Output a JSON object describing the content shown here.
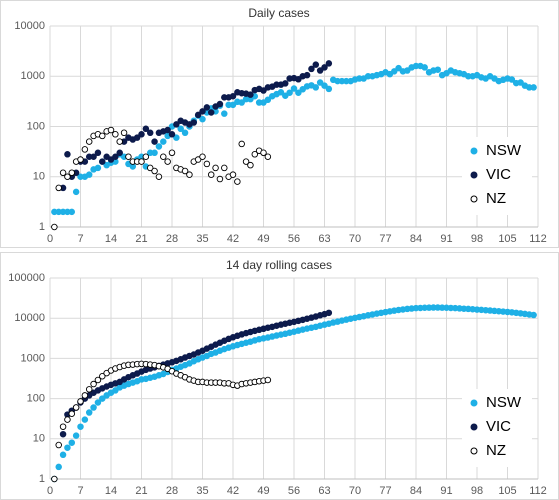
{
  "chart_data": [
    {
      "type": "scatter",
      "title": "Daily cases",
      "xlim": [
        0,
        112
      ],
      "ylim": [
        1,
        10000
      ],
      "log_y": true,
      "grid": true,
      "legend": "lower right",
      "xticks": [
        0,
        7,
        14,
        21,
        28,
        35,
        42,
        49,
        56,
        63,
        70,
        77,
        84,
        91,
        98,
        105,
        112
      ],
      "yticks": [
        1,
        10,
        100,
        1000,
        10000
      ],
      "series": [
        {
          "name": "NSW",
          "color": "#1fb0e6",
          "marker_fill": "#1fb0e6",
          "x": [
            1,
            2,
            3,
            4,
            5,
            6,
            7,
            8,
            9,
            10,
            11,
            12,
            13,
            14,
            15,
            16,
            17,
            18,
            19,
            20,
            21,
            22,
            23,
            24,
            25,
            26,
            27,
            28,
            29,
            30,
            31,
            32,
            33,
            34,
            35,
            36,
            37,
            38,
            39,
            40,
            41,
            42,
            43,
            44,
            45,
            46,
            47,
            48,
            49,
            50,
            51,
            52,
            53,
            54,
            55,
            56,
            57,
            58,
            59,
            60,
            61,
            62,
            63,
            64,
            65,
            66,
            67,
            68,
            69,
            70,
            71,
            72,
            73,
            74,
            75,
            76,
            77,
            78,
            79,
            80,
            81,
            82,
            83,
            84,
            85,
            86,
            87,
            88,
            89,
            90,
            91,
            92,
            93,
            94,
            95,
            96,
            97,
            98,
            99,
            100,
            101,
            102,
            103,
            104,
            105,
            106,
            107,
            108,
            109,
            110,
            111
          ],
          "values": [
            2,
            2,
            2,
            2,
            2,
            5,
            10,
            10,
            11,
            14,
            15,
            20,
            17,
            19,
            20,
            28,
            25,
            18,
            16,
            22,
            25,
            16,
            30,
            30,
            40,
            50,
            65,
            100,
            60,
            90,
            75,
            100,
            130,
            165,
            140,
            190,
            230,
            200,
            260,
            180,
            270,
            270,
            310,
            300,
            350,
            350,
            400,
            300,
            300,
            340,
            400,
            440,
            480,
            410,
            470,
            570,
            470,
            550,
            630,
            660,
            600,
            750,
            650,
            560,
            850,
            800,
            800,
            800,
            800,
            860,
            900,
            900,
            1000,
            1000,
            1050,
            1100,
            1200,
            1100,
            1250,
            1450,
            1250,
            1300,
            1500,
            1600,
            1600,
            1500,
            1200,
            1300,
            1350,
            1050,
            1150,
            1300,
            1200,
            1150,
            1100,
            1000,
            1000,
            1050,
            950,
            900,
            1000,
            900,
            800,
            850,
            900,
            860,
            730,
            750,
            650,
            600,
            600
          ]
        },
        {
          "name": "VIC",
          "color": "#0d1b4c",
          "marker_fill": "#0d1b4c",
          "x": [
            3,
            4,
            5,
            6,
            7,
            8,
            9,
            10,
            11,
            12,
            13,
            14,
            15,
            16,
            17,
            18,
            19,
            20,
            21,
            22,
            23,
            24,
            25,
            26,
            27,
            28,
            29,
            30,
            31,
            32,
            33,
            34,
            35,
            36,
            37,
            38,
            39,
            40,
            41,
            42,
            43,
            44,
            45,
            46,
            47,
            48,
            49,
            50,
            51,
            52,
            53,
            54,
            55,
            56,
            57,
            58,
            59,
            60,
            61,
            62,
            63,
            64
          ],
          "values": [
            6,
            28,
            10,
            12,
            20,
            20,
            25,
            25,
            30,
            20,
            25,
            22,
            25,
            30,
            50,
            60,
            55,
            60,
            70,
            90,
            75,
            50,
            75,
            80,
            85,
            70,
            110,
            130,
            120,
            110,
            120,
            170,
            200,
            240,
            190,
            250,
            280,
            380,
            380,
            400,
            480,
            460,
            450,
            430,
            530,
            560,
            520,
            600,
            620,
            680,
            680,
            720,
            900,
            920,
            870,
            1000,
            1050,
            1400,
            1700,
            1300,
            1500,
            1800
          ]
        },
        {
          "name": "NZ",
          "color": "#000000",
          "marker_fill": "#ffffff",
          "x": [
            1,
            2,
            3,
            4,
            5,
            6,
            7,
            8,
            9,
            10,
            11,
            12,
            13,
            14,
            15,
            16,
            17,
            18,
            19,
            20,
            21,
            22,
            23,
            24,
            25,
            26,
            27,
            28,
            29,
            30,
            31,
            32,
            33,
            34,
            35,
            36,
            37,
            38,
            39,
            40,
            41,
            42,
            43,
            44,
            45,
            46,
            47,
            48,
            49,
            50
          ],
          "values": [
            1,
            6,
            12,
            10,
            12,
            20,
            22,
            35,
            50,
            65,
            70,
            65,
            80,
            85,
            70,
            50,
            75,
            25,
            20,
            20,
            20,
            25,
            15,
            13,
            10,
            25,
            20,
            30,
            15,
            14,
            13,
            11,
            20,
            22,
            25,
            18,
            11,
            15,
            9,
            15,
            10,
            11,
            8,
            45,
            20,
            17,
            28,
            33,
            30,
            25
          ]
        }
      ]
    },
    {
      "type": "scatter",
      "title": "14 day rolling cases",
      "xlim": [
        0,
        112
      ],
      "ylim": [
        1,
        100000
      ],
      "log_y": true,
      "grid": true,
      "legend": "lower right",
      "xticks": [
        0,
        7,
        14,
        21,
        28,
        35,
        42,
        49,
        56,
        63,
        70,
        77,
        84,
        91,
        98,
        105,
        112
      ],
      "yticks": [
        1,
        10,
        100,
        1000,
        10000,
        100000
      ],
      "series": [
        {
          "name": "NSW",
          "color": "#1fb0e6",
          "marker_fill": "#1fb0e6",
          "x": [
            1,
            2,
            3,
            4,
            5,
            6,
            7,
            8,
            9,
            10,
            11,
            12,
            13,
            14,
            15,
            16,
            17,
            18,
            19,
            20,
            21,
            22,
            23,
            24,
            25,
            26,
            27,
            28,
            29,
            30,
            31,
            32,
            33,
            34,
            35,
            36,
            37,
            38,
            39,
            40,
            41,
            42,
            43,
            44,
            45,
            46,
            47,
            48,
            49,
            50,
            51,
            52,
            53,
            54,
            55,
            56,
            57,
            58,
            59,
            60,
            61,
            62,
            63,
            64,
            65,
            66,
            67,
            68,
            69,
            70,
            71,
            72,
            73,
            74,
            75,
            76,
            77,
            78,
            79,
            80,
            81,
            82,
            83,
            84,
            85,
            86,
            87,
            88,
            89,
            90,
            91,
            92,
            93,
            94,
            95,
            96,
            97,
            98,
            99,
            100,
            101,
            102,
            103,
            104,
            105,
            106,
            107,
            108,
            109,
            110,
            111
          ],
          "values": [
            1,
            2,
            4,
            6,
            8,
            12,
            20,
            30,
            45,
            60,
            80,
            100,
            120,
            140,
            160,
            190,
            210,
            230,
            250,
            270,
            300,
            310,
            330,
            350,
            380,
            410,
            460,
            520,
            560,
            620,
            680,
            750,
            850,
            950,
            1050,
            1150,
            1300,
            1400,
            1550,
            1700,
            1850,
            2000,
            2150,
            2300,
            2450,
            2600,
            2800,
            3000,
            3150,
            3300,
            3500,
            3700,
            3900,
            4100,
            4350,
            4600,
            4900,
            5200,
            5500,
            5800,
            6100,
            6500,
            6900,
            7300,
            7800,
            8200,
            8700,
            9200,
            9700,
            10200,
            10700,
            11200,
            11800,
            12400,
            13000,
            13600,
            14200,
            14800,
            15400,
            16000,
            16500,
            17000,
            17400,
            17800,
            18000,
            18200,
            18300,
            18400,
            18400,
            18300,
            18200,
            18000,
            17800,
            17500,
            17200,
            17000,
            16700,
            16400,
            16100,
            15800,
            15500,
            15200,
            14900,
            14600,
            14300,
            14000,
            13600,
            13200,
            12800,
            12400,
            12000
          ]
        },
        {
          "name": "VIC",
          "color": "#0d1b4c",
          "marker_fill": "#0d1b4c",
          "x": [
            3,
            4,
            5,
            6,
            7,
            8,
            9,
            10,
            11,
            12,
            13,
            14,
            15,
            16,
            17,
            18,
            19,
            20,
            21,
            22,
            23,
            24,
            25,
            26,
            27,
            28,
            29,
            30,
            31,
            32,
            33,
            34,
            35,
            36,
            37,
            38,
            39,
            40,
            41,
            42,
            43,
            44,
            45,
            46,
            47,
            48,
            49,
            50,
            51,
            52,
            53,
            54,
            55,
            56,
            57,
            58,
            59,
            60,
            61,
            62,
            63,
            64
          ],
          "values": [
            13,
            40,
            50,
            60,
            80,
            100,
            120,
            140,
            160,
            180,
            200,
            220,
            240,
            260,
            300,
            340,
            380,
            420,
            470,
            520,
            560,
            600,
            650,
            700,
            750,
            800,
            870,
            950,
            1050,
            1150,
            1250,
            1400,
            1550,
            1750,
            1950,
            2200,
            2450,
            2750,
            3050,
            3350,
            3650,
            3950,
            4250,
            4550,
            4850,
            5150,
            5450,
            5800,
            6100,
            6500,
            6900,
            7300,
            7700,
            8100,
            8600,
            9100,
            9700,
            10300,
            11000,
            11800,
            12600,
            13600
          ]
        },
        {
          "name": "NZ",
          "color": "#000000",
          "marker_fill": "#ffffff",
          "x": [
            1,
            2,
            3,
            4,
            5,
            6,
            7,
            8,
            9,
            10,
            11,
            12,
            13,
            14,
            15,
            16,
            17,
            18,
            19,
            20,
            21,
            22,
            23,
            24,
            25,
            26,
            27,
            28,
            29,
            30,
            31,
            32,
            33,
            34,
            35,
            36,
            37,
            38,
            39,
            40,
            41,
            42,
            43,
            44,
            45,
            46,
            47,
            48,
            49,
            50
          ],
          "values": [
            1,
            7,
            20,
            30,
            42,
            60,
            85,
            120,
            170,
            230,
            290,
            360,
            430,
            500,
            560,
            610,
            660,
            690,
            700,
            720,
            730,
            720,
            700,
            680,
            640,
            600,
            550,
            480,
            420,
            380,
            340,
            300,
            280,
            260,
            260,
            250,
            250,
            250,
            250,
            240,
            240,
            220,
            210,
            230,
            240,
            250,
            260,
            270,
            280,
            290
          ]
        }
      ]
    }
  ]
}
